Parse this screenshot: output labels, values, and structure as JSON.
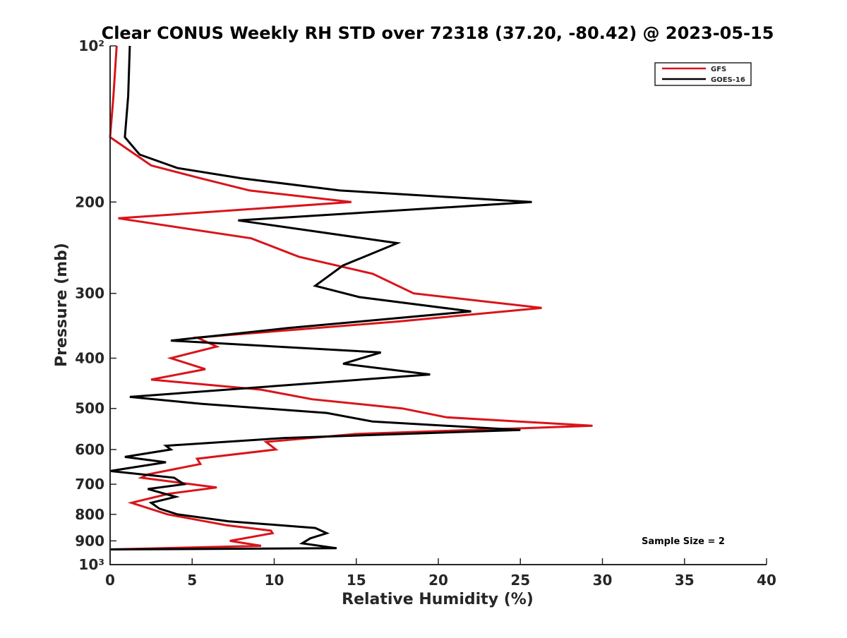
{
  "chart_data": {
    "type": "line",
    "title": "Clear CONUS Weekly RH STD over 72318 (37.20, -80.42) @ 2023-05-15",
    "xlabel": "Relative Humidity (%)",
    "ylabel": "Pressure (mb)",
    "xlim": [
      0,
      40
    ],
    "ylim": [
      100,
      1000
    ],
    "y_scale": "log",
    "y_reversed": true,
    "x_ticks": [
      0,
      5,
      10,
      15,
      20,
      25,
      30,
      35,
      40
    ],
    "x_tick_labels": [
      "0",
      "5",
      "10",
      "15",
      "20",
      "25",
      "30",
      "35",
      "40"
    ],
    "y_ticks": [
      100,
      200,
      300,
      400,
      500,
      600,
      700,
      800,
      900,
      1000
    ],
    "y_tick_labels": [
      "10²",
      "200",
      "300",
      "400",
      "500",
      "600",
      "700",
      "800",
      "900",
      "10³"
    ],
    "grid": false,
    "legend_position": "top-right",
    "annotation": "Sample Size = 2",
    "series": [
      {
        "name": "GFS",
        "color": "#d9141a",
        "points": [
          [
            0.4,
            100
          ],
          [
            0.2,
            125
          ],
          [
            0.0,
            150
          ],
          [
            2.5,
            170
          ],
          [
            5.5,
            180
          ],
          [
            8.5,
            190
          ],
          [
            14.7,
            200
          ],
          [
            0.5,
            215
          ],
          [
            8.6,
            235
          ],
          [
            11.5,
            255
          ],
          [
            16.0,
            275
          ],
          [
            18.5,
            300
          ],
          [
            26.3,
            320
          ],
          [
            17.5,
            340
          ],
          [
            5.3,
            365
          ],
          [
            6.5,
            380
          ],
          [
            3.7,
            400
          ],
          [
            5.8,
            420
          ],
          [
            2.5,
            440
          ],
          [
            9.2,
            460
          ],
          [
            12.3,
            480
          ],
          [
            17.8,
            500
          ],
          [
            20.5,
            520
          ],
          [
            29.4,
            540
          ],
          [
            15.0,
            560
          ],
          [
            9.5,
            580
          ],
          [
            10.1,
            600
          ],
          [
            5.3,
            625
          ],
          [
            5.5,
            640
          ],
          [
            2.3,
            670
          ],
          [
            1.9,
            680
          ],
          [
            6.5,
            710
          ],
          [
            3.6,
            730
          ],
          [
            1.3,
            760
          ],
          [
            3.5,
            800
          ],
          [
            7.1,
            840
          ],
          [
            9.8,
            860
          ],
          [
            9.9,
            870
          ],
          [
            7.3,
            900
          ],
          [
            9.2,
            920
          ],
          [
            0.0,
            935
          ]
        ]
      },
      {
        "name": "GOES-16",
        "color": "#000000",
        "points": [
          [
            1.2,
            100
          ],
          [
            1.1,
            125
          ],
          [
            0.9,
            150
          ],
          [
            1.8,
            162
          ],
          [
            4.1,
            172
          ],
          [
            8.0,
            180
          ],
          [
            14.0,
            190
          ],
          [
            25.7,
            200
          ],
          [
            7.8,
            217
          ],
          [
            17.5,
            240
          ],
          [
            14.2,
            265
          ],
          [
            12.5,
            290
          ],
          [
            15.2,
            305
          ],
          [
            22.0,
            325
          ],
          [
            10.8,
            350
          ],
          [
            3.7,
            370
          ],
          [
            16.5,
            390
          ],
          [
            14.2,
            410
          ],
          [
            19.5,
            430
          ],
          [
            1.2,
            475
          ],
          [
            5.6,
            490
          ],
          [
            13.2,
            510
          ],
          [
            16.0,
            530
          ],
          [
            25.0,
            550
          ],
          [
            10.6,
            570
          ],
          [
            3.4,
            590
          ],
          [
            3.7,
            600
          ],
          [
            0.9,
            620
          ],
          [
            3.4,
            635
          ],
          [
            0.0,
            660
          ],
          [
            3.9,
            680
          ],
          [
            4.5,
            700
          ],
          [
            2.3,
            715
          ],
          [
            4.0,
            740
          ],
          [
            2.5,
            760
          ],
          [
            3.0,
            780
          ],
          [
            4.1,
            800
          ],
          [
            7.2,
            825
          ],
          [
            12.5,
            850
          ],
          [
            13.2,
            870
          ],
          [
            12.2,
            890
          ],
          [
            11.7,
            910
          ],
          [
            13.8,
            930
          ],
          [
            0.0,
            935
          ]
        ]
      }
    ]
  }
}
